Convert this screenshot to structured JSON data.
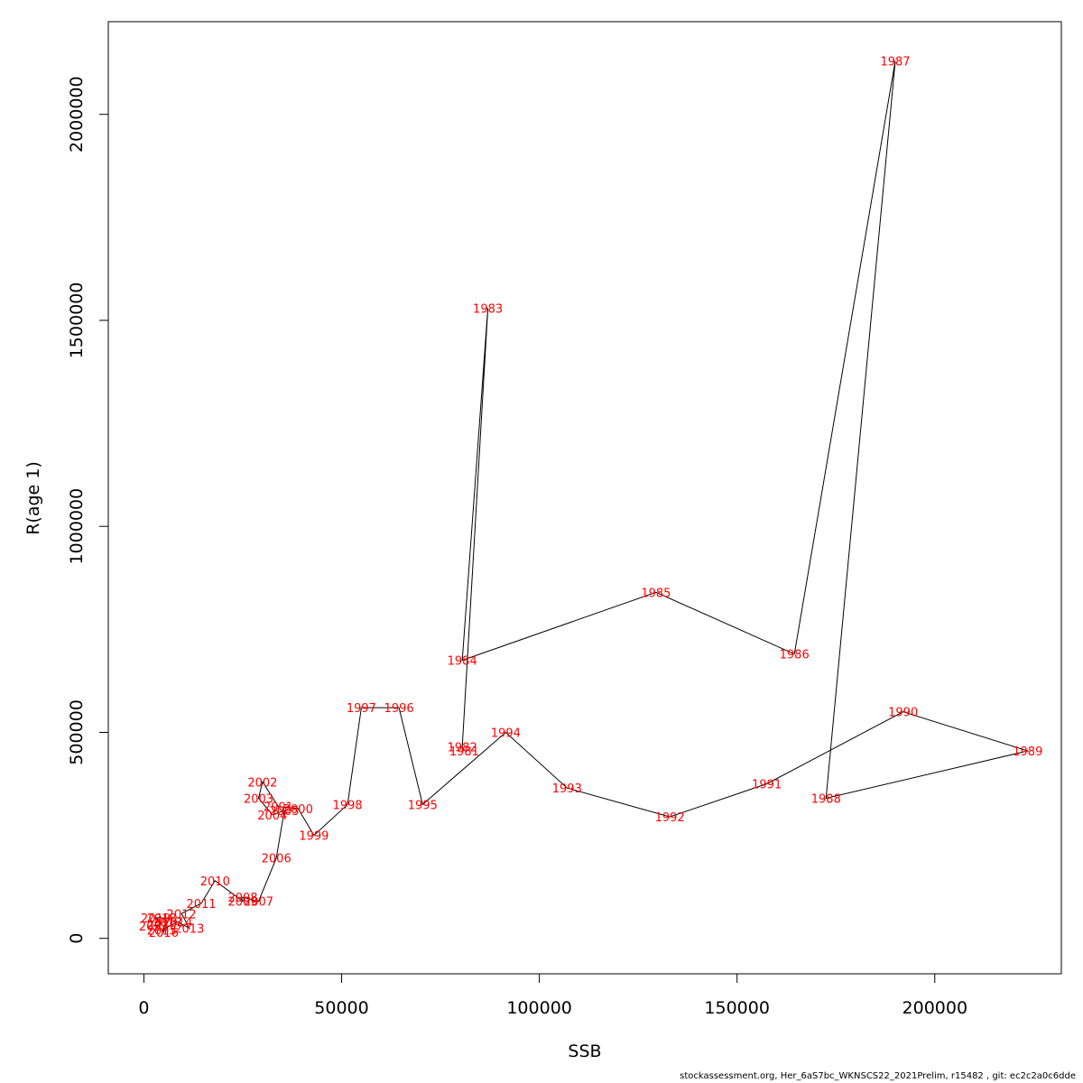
{
  "chart_data": {
    "type": "line",
    "xlabel": "SSB",
    "ylabel": "R(age 1)",
    "xlim": [
      -9000,
      232000
    ],
    "ylim": [
      -86000,
      2225000
    ],
    "xticks": [
      "0",
      "50000",
      "100000",
      "150000",
      "200000"
    ],
    "yticks": [
      "0",
      "500000",
      "1000000",
      "1500000",
      "2000000"
    ],
    "line_color": "#000000",
    "label_color": "#ff0000",
    "points": [
      {
        "year": "1981",
        "ssb": 81000,
        "r": 455000
      },
      {
        "year": "1982",
        "ssb": 80500,
        "r": 465000
      },
      {
        "year": "1983",
        "ssb": 87000,
        "r": 1530000
      },
      {
        "year": "1984",
        "ssb": 80500,
        "r": 675000
      },
      {
        "year": "1985",
        "ssb": 129500,
        "r": 840000
      },
      {
        "year": "1986",
        "ssb": 164500,
        "r": 690000
      },
      {
        "year": "1987",
        "ssb": 190000,
        "r": 2130000
      },
      {
        "year": "1988",
        "ssb": 172500,
        "r": 340000
      },
      {
        "year": "1989",
        "ssb": 223500,
        "r": 455000
      },
      {
        "year": "1990",
        "ssb": 192000,
        "r": 550000
      },
      {
        "year": "1991",
        "ssb": 157500,
        "r": 375000
      },
      {
        "year": "1992",
        "ssb": 133000,
        "r": 295000
      },
      {
        "year": "1993",
        "ssb": 107000,
        "r": 365000
      },
      {
        "year": "1994",
        "ssb": 91500,
        "r": 500000
      },
      {
        "year": "1995",
        "ssb": 70500,
        "r": 325000
      },
      {
        "year": "1996",
        "ssb": 64500,
        "r": 560000
      },
      {
        "year": "1997",
        "ssb": 55000,
        "r": 560000
      },
      {
        "year": "1998",
        "ssb": 51500,
        "r": 325000
      },
      {
        "year": "1999",
        "ssb": 43000,
        "r": 250000
      },
      {
        "year": "2000",
        "ssb": 39000,
        "r": 315000
      },
      {
        "year": "2001",
        "ssb": 34000,
        "r": 320000
      },
      {
        "year": "2002",
        "ssb": 30000,
        "r": 380000
      },
      {
        "year": "2003",
        "ssb": 29000,
        "r": 340000
      },
      {
        "year": "2004",
        "ssb": 32500,
        "r": 300000
      },
      {
        "year": "2005",
        "ssb": 35500,
        "r": 310000
      },
      {
        "year": "2006",
        "ssb": 33500,
        "r": 195000
      },
      {
        "year": "2007",
        "ssb": 29000,
        "r": 90000
      },
      {
        "year": "2008",
        "ssb": 25000,
        "r": 100000
      },
      {
        "year": "2009",
        "ssb": 25000,
        "r": 90000
      },
      {
        "year": "2010",
        "ssb": 18000,
        "r": 140000
      },
      {
        "year": "2011",
        "ssb": 14500,
        "r": 85000
      },
      {
        "year": "2012",
        "ssb": 9500,
        "r": 60000
      },
      {
        "year": "2013",
        "ssb": 11500,
        "r": 25000
      },
      {
        "year": "2014",
        "ssb": 8500,
        "r": 40000
      },
      {
        "year": "2015",
        "ssb": 4500,
        "r": 20000
      },
      {
        "year": "2016",
        "ssb": 5000,
        "r": 15000
      },
      {
        "year": "2017",
        "ssb": 6000,
        "r": 40000
      },
      {
        "year": "2018",
        "ssb": 4500,
        "r": 50000
      },
      {
        "year": "2019",
        "ssb": 3000,
        "r": 50000
      },
      {
        "year": "2020",
        "ssb": 4500,
        "r": 35000
      },
      {
        "year": "2021",
        "ssb": 2500,
        "r": 30000
      }
    ]
  },
  "footer": "stockassessment.org, Her_6aS7bc_WKNSCS22_2021Prelim, r15482 , git: ec2c2a0c6dde"
}
